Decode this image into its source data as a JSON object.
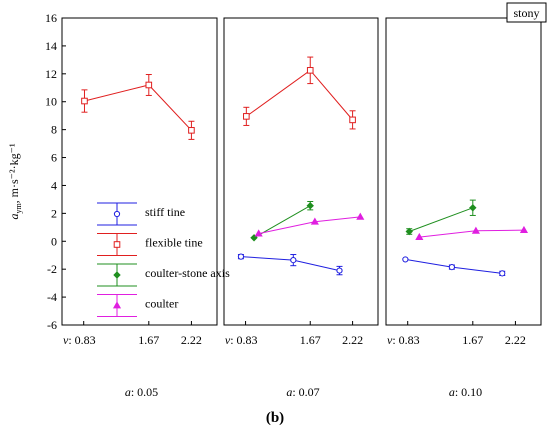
{
  "chart_data": {
    "type": "line",
    "yaxis": {
      "label_main": "a",
      "label_sub": "ym",
      "label_units": ", m·s⁻²·kg⁻¹",
      "range": [
        -6,
        16
      ],
      "ticks": [
        -6,
        -4,
        -2,
        0,
        2,
        4,
        6,
        8,
        10,
        12,
        14,
        16
      ]
    },
    "x_tick_prefix": "v:",
    "x_ticks": [
      "0.83",
      "1.67",
      "2.22"
    ],
    "badge": "stony",
    "caption": "(b)",
    "legend": [
      "stiff tine",
      "flexible tine",
      "coulter-stone axis",
      "coulter"
    ],
    "series_styles": [
      {
        "name": "stiff tine",
        "color": "#1f1fe0",
        "marker": "circle"
      },
      {
        "name": "flexible tine",
        "color": "#e01f1f",
        "marker": "square"
      },
      {
        "name": "coulter-stone axis",
        "color": "#1f8f1f",
        "marker": "diamond"
      },
      {
        "name": "coulter",
        "color": "#e01fe0",
        "marker": "triangle"
      }
    ],
    "panels": [
      {
        "label_prefix": "a",
        "label_value": ": 0.05",
        "series": [
          {
            "name": "flexible tine",
            "points": [
              [
                0.84,
                10.05,
                0.8
              ],
              [
                1.67,
                11.2,
                0.75
              ],
              [
                2.22,
                7.95,
                0.65
              ]
            ]
          }
        ]
      },
      {
        "label_prefix": "a",
        "label_value": ": 0.07",
        "series": [
          {
            "name": "flexible tine",
            "points": [
              [
                0.84,
                8.95,
                0.65
              ],
              [
                1.67,
                12.25,
                0.95
              ],
              [
                2.22,
                8.7,
                0.65
              ]
            ]
          },
          {
            "name": "stiff tine",
            "points": [
              [
                0.77,
                -1.1,
                0.15
              ],
              [
                1.45,
                -1.35,
                0.4
              ],
              [
                2.05,
                -2.1,
                0.3
              ]
            ]
          },
          {
            "name": "coulter-stone axis",
            "points": [
              [
                0.94,
                0.25,
                0.1
              ],
              [
                1.67,
                2.55,
                0.3
              ]
            ]
          },
          {
            "name": "coulter",
            "points": [
              [
                1.0,
                0.55,
                0.1
              ],
              [
                1.73,
                1.4,
                0.1
              ],
              [
                2.32,
                1.75,
                0.1
              ]
            ]
          }
        ]
      },
      {
        "label_prefix": "a",
        "label_value": ": 0.10",
        "series": [
          {
            "name": "stiff tine",
            "points": [
              [
                0.8,
                -1.3,
                0.1
              ],
              [
                1.4,
                -1.85,
                0.15
              ],
              [
                2.05,
                -2.3,
                0.15
              ]
            ]
          },
          {
            "name": "coulter-stone axis",
            "points": [
              [
                0.85,
                0.7,
                0.2
              ],
              [
                1.67,
                2.4,
                0.55
              ]
            ]
          },
          {
            "name": "coulter",
            "points": [
              [
                0.98,
                0.3,
                0.1
              ],
              [
                1.71,
                0.75,
                0.1
              ],
              [
                2.33,
                0.8,
                0.1
              ]
            ]
          }
        ]
      }
    ]
  }
}
